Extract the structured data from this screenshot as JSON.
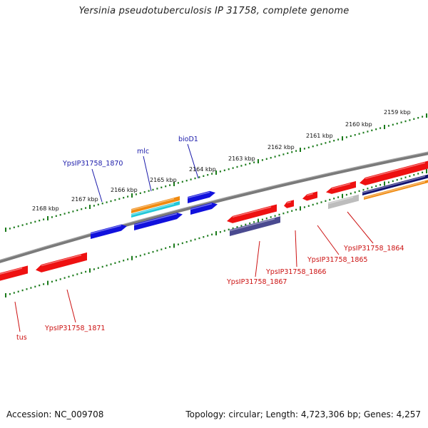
{
  "title": "Yersinia pseudotuberculosis IP 31758, complete genome",
  "footer": {
    "accession": "Accession: NC_009708",
    "summary": "Topology: circular; Length: 4,723,306 bp; Genes: 4,257"
  },
  "colors": {
    "backbone": "#7a7a7a",
    "ruler_ticks": "#1a7a1a",
    "gene_red": "#ee1111",
    "gene_blue": "#1111dd",
    "gene_orange": "#f08a10",
    "gene_cyan": "#22c8d8",
    "gene_navy": "#101070",
    "gene_slate": "#4a4a90",
    "gene_grey": "#bdbdbd",
    "label_blue": "#1a1aaa",
    "label_red": "#cc1111"
  },
  "ruler_labels": [
    "2159 kbp",
    "2160 kbp",
    "2161 kbp",
    "2162 kbp",
    "2163 kbp",
    "2164 kbp",
    "2165 kbp",
    "2166 kbp",
    "2167 kbp",
    "2168 kbp"
  ],
  "top_genes": [
    "YpsIP31758_1870",
    "mlc",
    "bioD1"
  ],
  "bottom_genes": [
    "tus",
    "YpsIP31758_1871",
    "YpsIP31758_1867",
    "YpsIP31758_1866",
    "YpsIP31758_1865",
    "YpsIP31758_1864"
  ]
}
